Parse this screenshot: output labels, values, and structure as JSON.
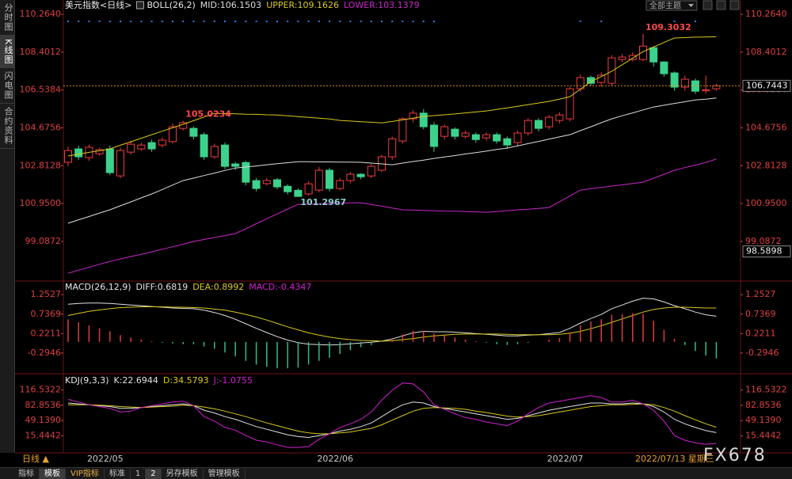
{
  "sidebar_tabs": [
    "分时图",
    "K线图",
    "闪电图",
    "合约资料"
  ],
  "theme_button": "全部主题",
  "interval_label": "日线 ▲",
  "cursor_date": "2022/07/13 星期三",
  "watermark": "FX678",
  "toolbar": [
    "指标",
    "模板",
    "VIP指标",
    "标准",
    "1",
    "2",
    "另存模板",
    "管理模板"
  ],
  "chart_data": [
    {
      "type": "candlestick",
      "title": "美元指数<日线>",
      "indicator": "BOLL(26,2)",
      "categories": [
        null,
        null,
        null,
        null,
        "2022/05",
        null,
        null,
        null,
        null,
        null,
        null,
        null,
        null,
        null,
        null,
        null,
        null,
        null,
        null,
        null,
        null,
        null,
        null,
        null,
        null,
        null,
        "2022/06",
        null,
        null,
        null,
        null,
        null,
        null,
        null,
        null,
        null,
        null,
        null,
        null,
        null,
        null,
        null,
        null,
        null,
        null,
        null,
        null,
        null,
        "2022/07",
        null,
        null,
        null,
        null,
        null,
        null,
        null,
        null,
        null,
        null,
        null,
        null,
        null,
        null
      ],
      "open": [
        102.98,
        103.64,
        103.21,
        103.4,
        103.64,
        102.31,
        103.48,
        103.64,
        103.95,
        103.83,
        104.0,
        104.65,
        104.65,
        104.34,
        103.25,
        103.83,
        102.9,
        102.97,
        102.08,
        101.93,
        102.12,
        101.8,
        101.6,
        101.42,
        101.61,
        102.59,
        101.69,
        102.08,
        102.39,
        102.31,
        102.59,
        103.25,
        104.03,
        105.12,
        105.4,
        104.81,
        104.26,
        104.61,
        104.26,
        104.34,
        104.18,
        104.34,
        104.14,
        103.95,
        104.42,
        105.04,
        104.73,
        105.04,
        105.12,
        106.6,
        107.15,
        106.91,
        106.87,
        108.04,
        108.04,
        108.04,
        108.62,
        107.92,
        107.38,
        106.68,
        106.99,
        106.5,
        106.6
      ],
      "high": [
        103.75,
        103.8,
        103.85,
        103.7,
        103.8,
        103.7,
        104.05,
        103.95,
        104.1,
        104.2,
        104.9,
        105.0234,
        104.75,
        104.45,
        103.9,
        103.95,
        103.0,
        103.05,
        102.2,
        102.2,
        102.2,
        101.9,
        101.7,
        102.05,
        102.75,
        102.7,
        102.2,
        102.5,
        102.45,
        102.9,
        103.35,
        104.25,
        105.2,
        105.55,
        105.6,
        104.95,
        104.85,
        104.7,
        104.55,
        104.45,
        104.45,
        104.45,
        104.25,
        104.55,
        105.15,
        105.15,
        105.3,
        105.45,
        106.7,
        107.3,
        107.25,
        107.4,
        108.25,
        108.3,
        108.4,
        109.3032,
        108.7,
        107.95,
        107.45,
        107.25,
        107.1,
        107.25,
        106.85
      ],
      "low": [
        102.8,
        103.1,
        103.05,
        103.3,
        102.35,
        102.2,
        103.35,
        103.55,
        103.5,
        103.7,
        103.9,
        104.55,
        104.1,
        103.1,
        103.15,
        102.65,
        102.6,
        101.85,
        101.55,
        101.85,
        101.65,
        101.4,
        101.2967,
        101.35,
        101.5,
        101.55,
        101.6,
        101.95,
        102.15,
        102.2,
        102.5,
        103.1,
        103.9,
        104.95,
        104.6,
        103.5,
        104.1,
        104.1,
        104.15,
        103.95,
        104.05,
        103.9,
        103.65,
        103.8,
        104.3,
        104.5,
        104.6,
        104.9,
        105.0,
        106.45,
        106.75,
        106.7,
        106.75,
        107.9,
        107.95,
        107.95,
        107.7,
        107.2,
        106.5,
        106.5,
        106.35,
        106.35,
        106.5
      ],
      "close": [
        103.56,
        103.25,
        103.72,
        103.6,
        102.47,
        103.56,
        103.87,
        103.83,
        103.64,
        104.07,
        104.73,
        104.93,
        104.26,
        103.25,
        103.76,
        102.78,
        102.78,
        102.0,
        101.69,
        102.08,
        101.77,
        101.53,
        101.3,
        101.92,
        102.59,
        101.69,
        102.08,
        102.39,
        102.27,
        102.78,
        103.25,
        104.14,
        105.12,
        105.4,
        104.73,
        103.76,
        104.73,
        104.26,
        104.42,
        104.1,
        104.34,
        104.03,
        103.83,
        104.42,
        105.04,
        104.65,
        105.2,
        105.31,
        106.6,
        107.15,
        106.87,
        107.27,
        108.12,
        108.16,
        108.24,
        108.7,
        107.92,
        107.34,
        106.68,
        107.07,
        106.48,
        106.55,
        106.7443
      ],
      "high_labels": [
        null,
        null,
        null,
        null,
        null,
        null,
        null,
        null,
        null,
        null,
        null,
        "105.0234",
        null,
        null,
        null,
        null,
        null,
        null,
        null,
        null,
        null,
        null,
        null,
        null,
        null,
        null,
        null,
        null,
        null,
        null,
        null,
        null,
        null,
        null,
        null,
        null,
        null,
        null,
        null,
        null,
        null,
        null,
        null,
        null,
        null,
        null,
        null,
        null,
        null,
        null,
        null,
        null,
        null,
        null,
        null,
        "109.3032",
        null,
        null,
        null,
        null,
        null,
        null,
        null
      ],
      "low_labels": [
        null,
        null,
        null,
        null,
        null,
        null,
        null,
        null,
        null,
        null,
        null,
        null,
        null,
        null,
        null,
        null,
        null,
        null,
        null,
        null,
        null,
        null,
        "101.2967",
        null,
        null,
        null,
        null,
        null,
        null,
        null,
        null,
        null,
        null,
        null,
        null,
        null,
        null,
        null,
        null,
        null,
        null,
        null,
        null,
        null,
        null,
        null,
        null,
        null,
        null,
        null,
        null,
        null,
        null,
        null,
        null,
        null,
        null,
        null,
        null,
        null,
        null,
        null,
        null
      ],
      "up_color": "#f03c3c",
      "down_color": "#3cd28c",
      "title_color": "#e8e8e8",
      "high_label_color": "#ff4a4a",
      "low_label_color": "#8ccfcf",
      "axis_color": "#dc4040",
      "price_line_color": "#e08a20",
      "cursor_price": 98.5898,
      "series": [
        {
          "name": "MID:106.1503",
          "color": "#dcdcdc",
          "values": [
            99.98,
            100.15,
            100.31,
            100.48,
            100.64,
            100.84,
            101.03,
            101.23,
            101.42,
            101.64,
            101.86,
            102.08,
            102.2,
            102.33,
            102.45,
            102.58,
            102.7,
            102.75,
            102.8,
            102.86,
            102.91,
            102.96,
            103.01,
            103.01,
            103.0,
            103.0,
            102.99,
            102.99,
            102.98,
            102.94,
            102.9,
            102.86,
            102.94,
            103.02,
            103.09,
            103.17,
            103.24,
            103.31,
            103.39,
            103.46,
            103.53,
            103.61,
            103.68,
            103.79,
            103.9,
            104.01,
            104.12,
            104.23,
            104.34,
            104.54,
            104.73,
            104.93,
            105.12,
            105.27,
            105.41,
            105.56,
            105.7,
            105.79,
            105.88,
            105.96,
            106.05,
            106.09,
            106.1503
          ]
        },
        {
          "name": "UPPER:109.1626",
          "color": "#d8c81e",
          "values": [
            103.29,
            103.38,
            103.47,
            103.55,
            103.64,
            103.82,
            103.99,
            104.17,
            104.34,
            104.51,
            104.68,
            104.85,
            105.03,
            105.21,
            105.39,
            105.38,
            105.37,
            105.35,
            105.34,
            105.32,
            105.31,
            105.27,
            105.23,
            105.19,
            105.15,
            105.11,
            105.04,
            105.01,
            104.98,
            104.95,
            104.92,
            104.99,
            105.07,
            105.15,
            105.24,
            105.28,
            105.32,
            105.36,
            105.41,
            105.46,
            105.51,
            105.58,
            105.66,
            105.74,
            105.82,
            105.9,
            105.98,
            106.09,
            106.21,
            106.58,
            106.95,
            107.2,
            107.46,
            107.78,
            108.11,
            108.43,
            108.65,
            108.88,
            109.1,
            109.12,
            109.14,
            109.15,
            109.1626
          ]
        },
        {
          "name": "LOWER:103.1379",
          "color": "#c828c8",
          "values": [
            97.52,
            97.67,
            97.81,
            97.96,
            98.1,
            98.22,
            98.34,
            98.45,
            98.57,
            98.7,
            98.82,
            98.95,
            99.08,
            99.18,
            99.28,
            99.37,
            99.47,
            99.71,
            99.96,
            100.2,
            100.44,
            100.68,
            100.91,
            100.92,
            100.94,
            100.95,
            100.96,
            100.98,
            100.99,
            100.9,
            100.82,
            100.73,
            100.64,
            100.63,
            100.61,
            100.6,
            100.58,
            100.57,
            100.55,
            100.54,
            100.52,
            100.56,
            100.6,
            100.64,
            100.67,
            100.71,
            100.75,
            101.04,
            101.32,
            101.61,
            101.68,
            101.74,
            101.81,
            101.87,
            101.94,
            102.0,
            102.2,
            102.39,
            102.59,
            102.72,
            102.84,
            102.97,
            103.1379
          ]
        }
      ],
      "ylim": [
        97.25,
        110.58
      ],
      "yticks": [
        {
          "value": 110.264,
          "label": "110.2640"
        },
        108.4012,
        106.5384,
        104.6756,
        102.8128,
        {
          "value": 100.95,
          "label": "100.9500"
        },
        99.0872
      ]
    },
    {
      "type": "macd",
      "title": "MACD(26,12,9)",
      "title_color": "#e8e8e8",
      "axis_color": "#dc4040",
      "up_color": "#e03c3c",
      "down_color": "#2fbf83",
      "series": [
        {
          "name": "DIFF:0.6819",
          "color": "#e0e0e0",
          "kind": "line",
          "values": [
            1,
            1.02,
            1.03,
            1.03,
            1.02,
            1,
            0.98,
            0.96,
            0.94,
            0.92,
            0.9,
            0.89,
            0.88,
            0.84,
            0.78,
            0.7,
            0.6,
            0.48,
            0.36,
            0.25,
            0.14,
            0.05,
            -0.02,
            -0.06,
            -0.07,
            -0.08,
            -0.07,
            -0.05,
            -0.03,
            -0.01,
            0.02,
            0.08,
            0.16,
            0.24,
            0.28,
            0.27,
            0.27,
            0.26,
            0.24,
            0.22,
            0.2,
            0.18,
            0.16,
            0.16,
            0.18,
            0.19,
            0.22,
            0.25,
            0.36,
            0.5,
            0.62,
            0.73,
            0.88,
            0.98,
            1.08,
            1.16,
            1.14,
            1.06,
            0.96,
            0.88,
            0.79,
            0.72,
            0.6819
          ]
        },
        {
          "name": "DEA:0.8992",
          "color": "#d8c81e",
          "kind": "line",
          "values": [
            0.7,
            0.76,
            0.81,
            0.85,
            0.88,
            0.91,
            0.92,
            0.93,
            0.93,
            0.93,
            0.92,
            0.92,
            0.91,
            0.9,
            0.87,
            0.84,
            0.79,
            0.73,
            0.66,
            0.58,
            0.49,
            0.4,
            0.32,
            0.24,
            0.18,
            0.13,
            0.09,
            0.06,
            0.04,
            0.03,
            0.02,
            0.03,
            0.06,
            0.09,
            0.13,
            0.16,
            0.18,
            0.2,
            0.21,
            0.21,
            0.21,
            0.21,
            0.2,
            0.19,
            0.19,
            0.19,
            0.19,
            0.2,
            0.23,
            0.28,
            0.35,
            0.43,
            0.52,
            0.61,
            0.7,
            0.79,
            0.86,
            0.9,
            0.92,
            0.92,
            0.91,
            0.9,
            0.8992
          ]
        },
        {
          "name": "MACD:-0.4347",
          "color": "#d020d0",
          "kind": "bar",
          "values": [
            0.6,
            0.52,
            0.44,
            0.36,
            0.28,
            0.18,
            0.12,
            0.06,
            0.02,
            -0.02,
            -0.04,
            -0.06,
            -0.06,
            -0.12,
            -0.18,
            -0.28,
            -0.38,
            -0.5,
            -0.6,
            -0.66,
            -0.7,
            -0.7,
            -0.68,
            -0.6,
            -0.5,
            -0.42,
            -0.32,
            -0.22,
            -0.14,
            -0.08,
            0,
            0.1,
            0.2,
            0.3,
            0.3,
            0.22,
            0.18,
            0.12,
            0.06,
            0.02,
            -0.02,
            -0.06,
            -0.08,
            -0.06,
            -0.02,
            0,
            0.06,
            0.1,
            0.26,
            0.44,
            0.54,
            0.6,
            0.72,
            0.74,
            0.76,
            0.74,
            0.56,
            0.32,
            0.08,
            -0.08,
            -0.24,
            -0.36,
            -0.4347
          ]
        }
      ],
      "ylim": [
        -0.8,
        1.55
      ],
      "yticks": [
        1.2527,
        0.7369,
        0.2211,
        -0.2946
      ]
    },
    {
      "type": "kdj",
      "title": "KDJ(9,3,3)",
      "title_color": "#e8e8e8",
      "axis_color": "#dc4040",
      "series": [
        {
          "name": "K:22.6944",
          "color": "#e0e0e0",
          "kind": "line",
          "values": [
            88,
            86,
            84,
            82,
            80,
            76,
            76,
            78,
            80,
            82,
            84,
            86,
            82,
            72,
            66,
            58,
            52,
            44,
            36,
            30,
            24,
            18,
            14,
            12,
            16,
            20,
            26,
            30,
            36,
            44,
            58,
            72,
            84,
            90,
            88,
            80,
            76,
            72,
            68,
            64,
            60,
            56,
            52,
            54,
            60,
            66,
            72,
            76,
            80,
            84,
            88,
            88,
            86,
            86,
            88,
            86,
            80,
            68,
            52,
            42,
            34,
            27,
            22.6944
          ]
        },
        {
          "name": "D:34.5793",
          "color": "#d8c81e",
          "kind": "line",
          "values": [
            84,
            84,
            84,
            83,
            82,
            80,
            79,
            78,
            79,
            80,
            81,
            83,
            82,
            79,
            75,
            70,
            64,
            58,
            51,
            44,
            38,
            32,
            26,
            22,
            20,
            20,
            22,
            24,
            28,
            32,
            40,
            50,
            60,
            70,
            76,
            78,
            77,
            76,
            74,
            70,
            67,
            63,
            59,
            57,
            58,
            60,
            64,
            68,
            72,
            76,
            80,
            82,
            84,
            84,
            85,
            86,
            84,
            78,
            70,
            60,
            51,
            42,
            34.5793
          ]
        },
        {
          "name": "J:-1.0755",
          "color": "#d020d0",
          "kind": "line",
          "values": [
            96,
            90,
            84,
            80,
            76,
            68,
            70,
            78,
            82,
            86,
            90,
            92,
            82,
            58,
            48,
            34,
            28,
            16,
            6,
            2,
            -4,
            -10,
            -10,
            -8,
            8,
            20,
            34,
            42,
            52,
            68,
            94,
            116,
            132,
            130,
            112,
            84,
            74,
            64,
            56,
            52,
            46,
            42,
            38,
            48,
            64,
            78,
            88,
            92,
            96,
            100,
            104,
            100,
            90,
            90,
            94,
            86,
            72,
            48,
            16,
            6,
            0,
            -3,
            -1.0755
          ]
        }
      ],
      "ylim": [
        -22,
        149
      ],
      "yticks": [
        116.5322,
        82.8536,
        {
          "value": 49.139,
          "label": "49.1390"
        },
        15.4442
      ]
    }
  ]
}
